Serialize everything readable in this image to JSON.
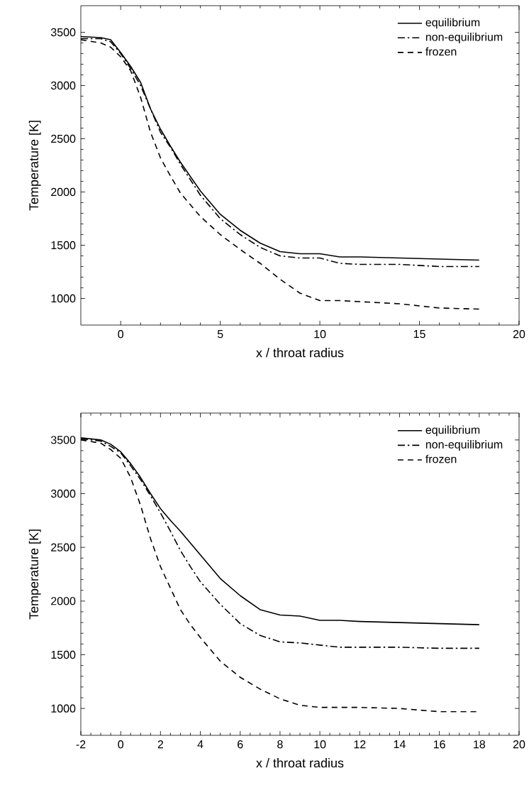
{
  "chart_data": [
    {
      "type": "line",
      "xlabel": "x / throat radius",
      "ylabel": "Temperature [K]",
      "xlim": [
        -2,
        20
      ],
      "ylim": [
        750,
        3750
      ],
      "xticks": [
        0,
        5,
        10,
        15,
        20
      ],
      "yticks": [
        1000,
        1500,
        2000,
        2500,
        3000,
        3500
      ],
      "legend": "top right",
      "x": [
        -2,
        -1,
        -0.5,
        0,
        0.5,
        1,
        1.5,
        2,
        2.5,
        3,
        4,
        5,
        6,
        7,
        8,
        9,
        10,
        11,
        12,
        14,
        16,
        18
      ],
      "series": [
        {
          "name": "equilibrium",
          "color": "#000000",
          "line_style": "solid",
          "values": [
            3460,
            3450,
            3430,
            3310,
            3180,
            3030,
            2780,
            2590,
            2430,
            2280,
            2010,
            1790,
            1640,
            1520,
            1440,
            1420,
            1420,
            1390,
            1390,
            1380,
            1370,
            1360
          ]
        },
        {
          "name": "non-equilibrium",
          "color": "#000000",
          "line_style": "dashdot",
          "values": [
            3440,
            3440,
            3410,
            3300,
            3160,
            3000,
            2780,
            2560,
            2420,
            2260,
            1970,
            1750,
            1600,
            1480,
            1400,
            1380,
            1380,
            1330,
            1320,
            1320,
            1300,
            1300
          ]
        },
        {
          "name": "frozen",
          "color": "#000000",
          "line_style": "dashed",
          "values": [
            3430,
            3400,
            3360,
            3270,
            3140,
            2890,
            2560,
            2320,
            2150,
            1990,
            1770,
            1600,
            1460,
            1330,
            1180,
            1050,
            980,
            980,
            970,
            950,
            910,
            900
          ]
        }
      ]
    },
    {
      "type": "line",
      "xlabel": "x / throat radius",
      "ylabel": "Temperature [K]",
      "xlim": [
        -2,
        20
      ],
      "ylim": [
        750,
        3750
      ],
      "xticks": [
        -2,
        0,
        2,
        4,
        6,
        8,
        10,
        12,
        14,
        16,
        18,
        20
      ],
      "yticks": [
        1000,
        1500,
        2000,
        2500,
        3000,
        3500
      ],
      "legend": "top right",
      "x": [
        -2,
        -1,
        -0.5,
        0,
        0.5,
        1,
        1.5,
        2,
        2.5,
        3,
        3.5,
        4,
        5,
        6,
        7,
        8,
        9,
        10,
        11,
        12,
        14,
        16,
        18
      ],
      "series": [
        {
          "name": "equilibrium",
          "color": "#000000",
          "line_style": "solid",
          "values": [
            3520,
            3500,
            3460,
            3390,
            3280,
            3150,
            3000,
            2860,
            2750,
            2650,
            2540,
            2430,
            2210,
            2050,
            1920,
            1870,
            1860,
            1820,
            1820,
            1810,
            1800,
            1790,
            1780
          ]
        },
        {
          "name": "non-equilibrium",
          "color": "#000000",
          "line_style": "dashdot",
          "values": [
            3510,
            3490,
            3440,
            3380,
            3260,
            3130,
            2980,
            2820,
            2650,
            2470,
            2320,
            2180,
            1970,
            1790,
            1680,
            1620,
            1610,
            1590,
            1570,
            1570,
            1570,
            1560,
            1560
          ]
        },
        {
          "name": "frozen",
          "color": "#000000",
          "line_style": "dashed",
          "values": [
            3500,
            3470,
            3410,
            3330,
            3150,
            2890,
            2580,
            2320,
            2120,
            1920,
            1780,
            1660,
            1440,
            1290,
            1180,
            1090,
            1030,
            1010,
            1010,
            1010,
            1000,
            970,
            970
          ]
        }
      ]
    }
  ]
}
